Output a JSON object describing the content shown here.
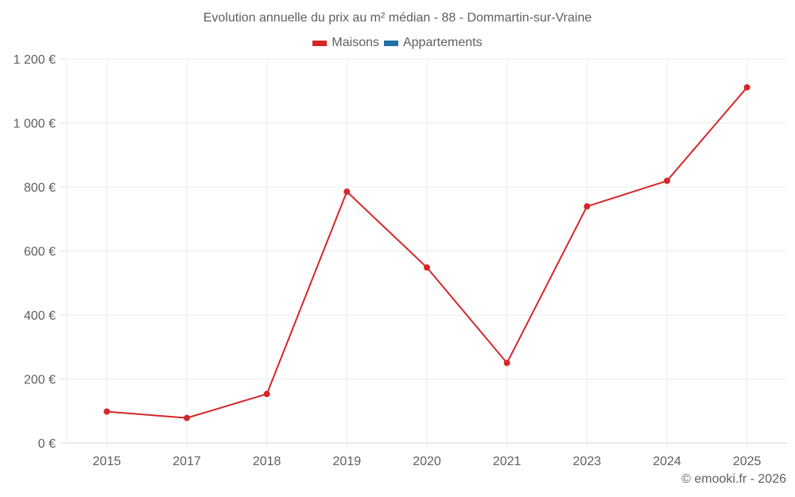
{
  "title": "Evolution annuelle du prix au m² médian - 88 - Dommartin-sur-Vraine",
  "legend": [
    {
      "label": "Maisons",
      "color": "#d62728"
    },
    {
      "label": "Appartements",
      "color": "#1f6fa8"
    }
  ],
  "credit": "© emooki.fr - 2026",
  "chart_data": {
    "type": "line",
    "title": "Evolution annuelle du prix au m² médian - 88 - Dommartin-sur-Vraine",
    "xlabel": "",
    "ylabel": "",
    "categories": [
      "2015",
      "2017",
      "2018",
      "2019",
      "2020",
      "2021",
      "2023",
      "2024",
      "2025"
    ],
    "series": [
      {
        "name": "Maisons",
        "color": "#d62728",
        "values": [
          98,
          78,
          153,
          785,
          548,
          250,
          739,
          819,
          1111
        ]
      },
      {
        "name": "Appartements",
        "color": "#1f6fa8",
        "values": []
      }
    ],
    "yticks": [
      0,
      200,
      400,
      600,
      800,
      1000,
      1200
    ],
    "ytick_labels": [
      "0 €",
      "200 €",
      "400 €",
      "600 €",
      "800 €",
      "1 000 €",
      "1 200 €"
    ],
    "ylim": [
      0,
      1200
    ],
    "grid": true,
    "legend_position": "top"
  }
}
